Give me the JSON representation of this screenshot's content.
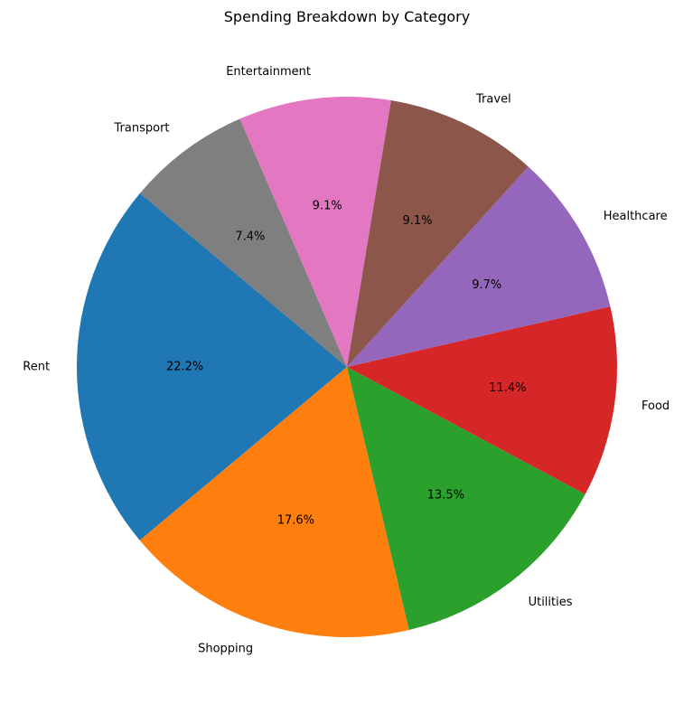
{
  "chart_data": {
    "type": "pie",
    "title": "Spending Breakdown by Category",
    "categories": [
      "Rent",
      "Shopping",
      "Utilities",
      "Food",
      "Healthcare",
      "Travel",
      "Entertainment",
      "Transport"
    ],
    "values": [
      22.2,
      17.6,
      13.5,
      11.4,
      9.7,
      9.1,
      9.1,
      7.4
    ],
    "percent_labels": [
      "22.2%",
      "17.6%",
      "13.5%",
      "11.4%",
      "9.7%",
      "9.1%",
      "9.1%",
      "7.4%"
    ],
    "colors": [
      "#1f77b4",
      "#ff7f0e",
      "#2ca02c",
      "#d62728",
      "#9467bd",
      "#8c564b",
      "#e377c2",
      "#7f7f7f"
    ],
    "start_angle_deg": 140,
    "direction": "counterclockwise"
  }
}
